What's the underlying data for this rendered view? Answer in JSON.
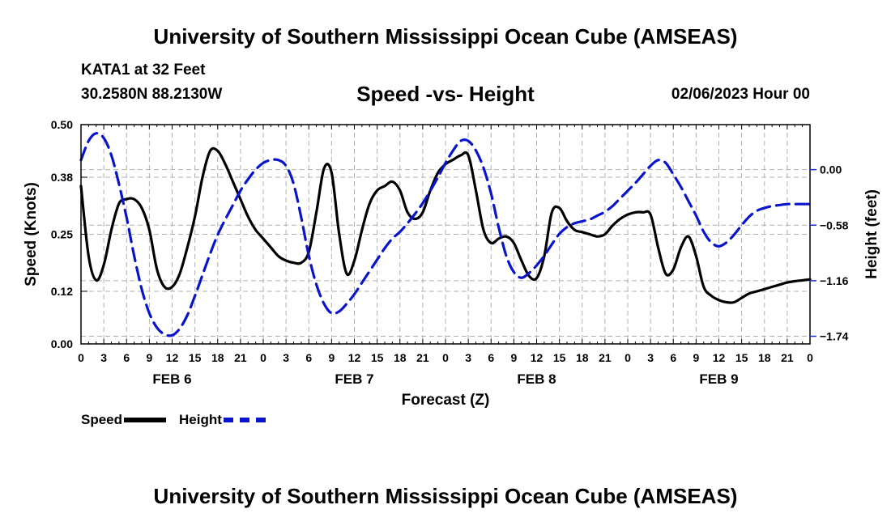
{
  "header": {
    "title": "University of Southern Mississippi Ocean Cube (AMSEAS)",
    "station": "KATA1 at 32 Feet",
    "coordinates": "30.2580N  88.2130W",
    "subtitle": "Speed -vs- Height",
    "datetime": "02/06/2023 Hour 00"
  },
  "footer": {
    "title": "University of Southern Mississippi Ocean Cube (AMSEAS)"
  },
  "legend": {
    "speed_label": "Speed",
    "height_label": "Height"
  },
  "colors": {
    "speed": "#000000",
    "height": "#0a14cc",
    "grid": "#b0b0b0"
  },
  "chart_data": {
    "type": "line",
    "xlabel": "Forecast (Z)",
    "ylabel_left": "Speed (Knots)",
    "ylabel_right": "Height (feet)",
    "x_range": [
      0,
      96
    ],
    "y_left_range": [
      0,
      0.5
    ],
    "y_left_ticks": [
      0.0,
      0.12,
      0.25,
      0.38,
      0.5
    ],
    "y_left_tick_labels": [
      "0.00",
      "0.12",
      "0.25",
      "0.38",
      "0.50"
    ],
    "y_right_range": [
      -1.82,
      0.47
    ],
    "y_right_ticks": [
      -1.74,
      -1.16,
      -0.58,
      0.0
    ],
    "y_right_tick_labels": [
      "−1.74",
      "−1.16",
      "−0.58",
      "0.00"
    ],
    "x_ticks": [
      0,
      3,
      6,
      9,
      12,
      15,
      18,
      21,
      24,
      27,
      30,
      33,
      36,
      39,
      42,
      45,
      48,
      51,
      54,
      57,
      60,
      63,
      66,
      69,
      72,
      75,
      78,
      81,
      84,
      87,
      90,
      93,
      96
    ],
    "x_tick_labels": [
      "0",
      "3",
      "6",
      "9",
      "12",
      "15",
      "18",
      "21",
      "0",
      "3",
      "6",
      "9",
      "12",
      "15",
      "18",
      "21",
      "0",
      "3",
      "6",
      "9",
      "12",
      "15",
      "18",
      "21",
      "0",
      "3",
      "6",
      "9",
      "12",
      "15",
      "18",
      "21",
      "0"
    ],
    "day_labels": [
      {
        "hour": 12,
        "label": "FEB 6"
      },
      {
        "hour": 36,
        "label": "FEB 7"
      },
      {
        "hour": 60,
        "label": "FEB 8"
      },
      {
        "hour": 84,
        "label": "FEB 9"
      }
    ],
    "series": [
      {
        "name": "Speed",
        "axis": "left",
        "style": "solid",
        "x": [
          0,
          1,
          2,
          3,
          4,
          5,
          6,
          7,
          8,
          9,
          10,
          11,
          12,
          13,
          14,
          15,
          16,
          17,
          18,
          19,
          20,
          21,
          22,
          23,
          24,
          25,
          26,
          27,
          28,
          29,
          30,
          31,
          32,
          33,
          34,
          35,
          36,
          37,
          38,
          39,
          40,
          41,
          42,
          43,
          44,
          45,
          46,
          47,
          48,
          49,
          50,
          51,
          52,
          53,
          54,
          55,
          56,
          57,
          58,
          59,
          60,
          61,
          62,
          63,
          64,
          65,
          66,
          67,
          68,
          69,
          70,
          71,
          72,
          73,
          74,
          75,
          76,
          77,
          78,
          79,
          80,
          81,
          82,
          83,
          84,
          85,
          86,
          87,
          88,
          89,
          90,
          91,
          92,
          93,
          94,
          95,
          96
        ],
        "y": [
          0.36,
          0.2,
          0.145,
          0.18,
          0.26,
          0.32,
          0.33,
          0.33,
          0.31,
          0.26,
          0.17,
          0.13,
          0.13,
          0.16,
          0.22,
          0.29,
          0.38,
          0.44,
          0.44,
          0.41,
          0.37,
          0.33,
          0.29,
          0.26,
          0.24,
          0.22,
          0.2,
          0.19,
          0.185,
          0.185,
          0.21,
          0.3,
          0.4,
          0.39,
          0.25,
          0.16,
          0.19,
          0.26,
          0.32,
          0.35,
          0.36,
          0.37,
          0.35,
          0.3,
          0.285,
          0.3,
          0.35,
          0.39,
          0.41,
          0.42,
          0.43,
          0.43,
          0.35,
          0.26,
          0.23,
          0.24,
          0.245,
          0.23,
          0.19,
          0.155,
          0.15,
          0.2,
          0.3,
          0.31,
          0.28,
          0.26,
          0.255,
          0.25,
          0.245,
          0.25,
          0.27,
          0.285,
          0.295,
          0.3,
          0.3,
          0.295,
          0.22,
          0.16,
          0.17,
          0.22,
          0.245,
          0.2,
          0.13,
          0.11,
          0.1,
          0.095,
          0.095,
          0.105,
          0.115,
          0.12,
          0.125,
          0.13,
          0.135,
          0.14,
          0.143,
          0.145,
          0.147
        ]
      },
      {
        "name": "Height",
        "axis": "right",
        "style": "dashed",
        "x": [
          0,
          1,
          2,
          3,
          4,
          5,
          6,
          7,
          8,
          9,
          10,
          11,
          12,
          13,
          14,
          15,
          16,
          17,
          18,
          19,
          20,
          21,
          22,
          23,
          24,
          25,
          26,
          27,
          28,
          29,
          30,
          31,
          32,
          33,
          34,
          35,
          36,
          37,
          38,
          39,
          40,
          41,
          42,
          43,
          44,
          45,
          46,
          47,
          48,
          49,
          50,
          51,
          52,
          53,
          54,
          55,
          56,
          57,
          58,
          59,
          60,
          61,
          62,
          63,
          64,
          65,
          66,
          67,
          68,
          69,
          70,
          71,
          72,
          73,
          74,
          75,
          76,
          77,
          78,
          79,
          80,
          81,
          82,
          83,
          84,
          85,
          86,
          87,
          88,
          89,
          90,
          91,
          92,
          93,
          94,
          95,
          96
        ],
        "y": [
          0.1,
          0.3,
          0.38,
          0.33,
          0.15,
          -0.15,
          -0.5,
          -0.9,
          -1.25,
          -1.5,
          -1.65,
          -1.72,
          -1.73,
          -1.66,
          -1.52,
          -1.32,
          -1.1,
          -0.88,
          -0.68,
          -0.52,
          -0.37,
          -0.22,
          -0.1,
          0.0,
          0.07,
          0.1,
          0.1,
          0.04,
          -0.15,
          -0.5,
          -0.9,
          -1.2,
          -1.4,
          -1.5,
          -1.48,
          -1.4,
          -1.3,
          -1.18,
          -1.06,
          -0.94,
          -0.82,
          -0.72,
          -0.65,
          -0.56,
          -0.46,
          -0.35,
          -0.22,
          -0.08,
          0.07,
          0.2,
          0.3,
          0.3,
          0.2,
          0.02,
          -0.25,
          -0.6,
          -0.9,
          -1.07,
          -1.13,
          -1.08,
          -1.0,
          -0.9,
          -0.78,
          -0.67,
          -0.6,
          -0.56,
          -0.54,
          -0.52,
          -0.48,
          -0.44,
          -0.38,
          -0.3,
          -0.22,
          -0.14,
          -0.05,
          0.04,
          0.1,
          0.07,
          -0.05,
          -0.18,
          -0.33,
          -0.48,
          -0.65,
          -0.76,
          -0.8,
          -0.76,
          -0.68,
          -0.58,
          -0.49,
          -0.43,
          -0.4,
          -0.38,
          -0.37,
          -0.36,
          -0.36,
          -0.36,
          -0.36
        ]
      }
    ]
  }
}
